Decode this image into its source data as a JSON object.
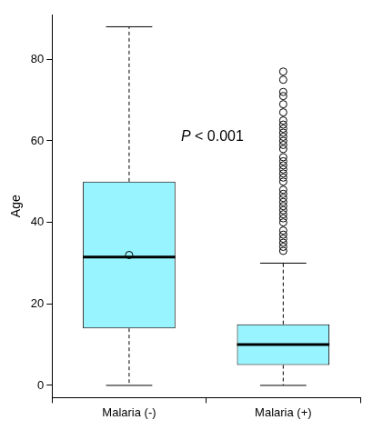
{
  "chart_data": {
    "type": "boxplot",
    "y_label": "Age",
    "categories": [
      "Malaria (-)",
      "Malaria (+)"
    ],
    "boxes": [
      {
        "min": 0,
        "q1": 14,
        "median": 31.5,
        "q3": 50,
        "max": 88,
        "outliers": []
      },
      {
        "min": 0,
        "q1": 5,
        "median": 10,
        "q3": 15,
        "max": 30,
        "outliers": [
          32,
          33,
          34,
          35,
          36,
          37,
          38,
          40,
          41,
          42,
          43,
          44,
          45,
          46,
          47,
          48,
          50,
          51,
          52,
          53,
          54,
          55,
          56,
          58,
          59,
          60,
          61,
          62,
          63,
          64,
          65,
          67,
          69,
          71,
          72,
          75,
          77
        ]
      }
    ],
    "color": "#98f5ff",
    "annotation": "P < 0.001",
    "ylim": [
      -3,
      91
    ],
    "yticks": [
      0,
      20,
      40,
      60,
      80
    ],
    "grid": false
  }
}
